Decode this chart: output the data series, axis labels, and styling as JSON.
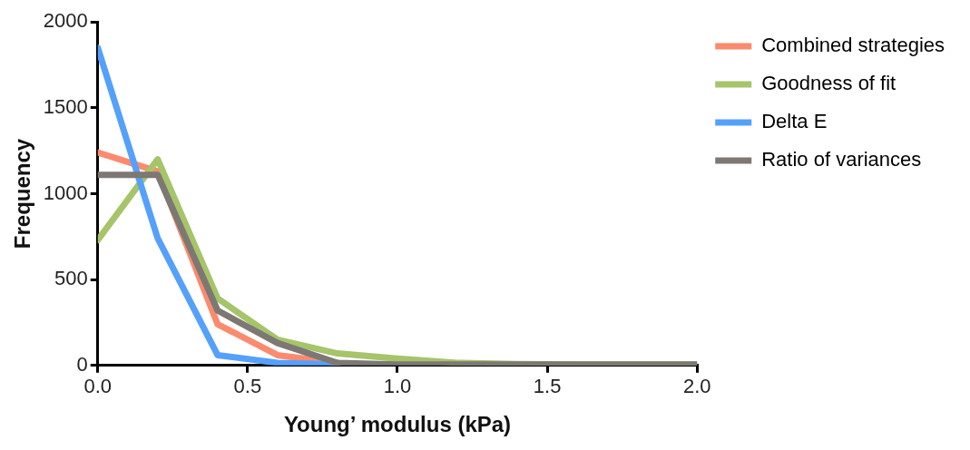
{
  "chart_data": {
    "type": "line",
    "xlabel": "Young’ modulus (kPa)",
    "ylabel": "Frequency",
    "x": [
      0,
      0.2,
      0.4,
      0.6,
      0.8,
      1.0,
      1.2,
      1.4,
      1.6,
      1.8,
      2.0
    ],
    "series": [
      {
        "name": "Combined strategies",
        "color": "#fb8b6e",
        "values": [
          1240,
          1130,
          240,
          60,
          15,
          null,
          null,
          null,
          null,
          null,
          null
        ]
      },
      {
        "name": "Goodness of fit",
        "color": "#a6c46a",
        "values": [
          730,
          1200,
          390,
          150,
          70,
          40,
          15,
          8,
          5,
          5,
          5
        ]
      },
      {
        "name": "Delta E",
        "color": "#55a0fb",
        "values": [
          1850,
          740,
          60,
          15,
          5,
          null,
          null,
          null,
          null,
          null,
          null
        ]
      },
      {
        "name": "Ratio of variances",
        "color": "#7d7874",
        "values": [
          1110,
          1110,
          320,
          130,
          15,
          5,
          5,
          5,
          5,
          5,
          5
        ]
      }
    ],
    "xlim": [
      0,
      2
    ],
    "xticks": [
      {
        "value": 0,
        "label": "0.0"
      },
      {
        "value": 0.5,
        "label": "0.5"
      },
      {
        "value": 1,
        "label": "1.0"
      },
      {
        "value": 1.5,
        "label": "1.5"
      },
      {
        "value": 2,
        "label": "2.0"
      }
    ],
    "ylim": [
      0,
      2000
    ],
    "yticks": [
      0,
      500,
      1000,
      1500,
      2000
    ],
    "grid": false,
    "legend": "right",
    "marker": "none",
    "line_style": "solid"
  }
}
